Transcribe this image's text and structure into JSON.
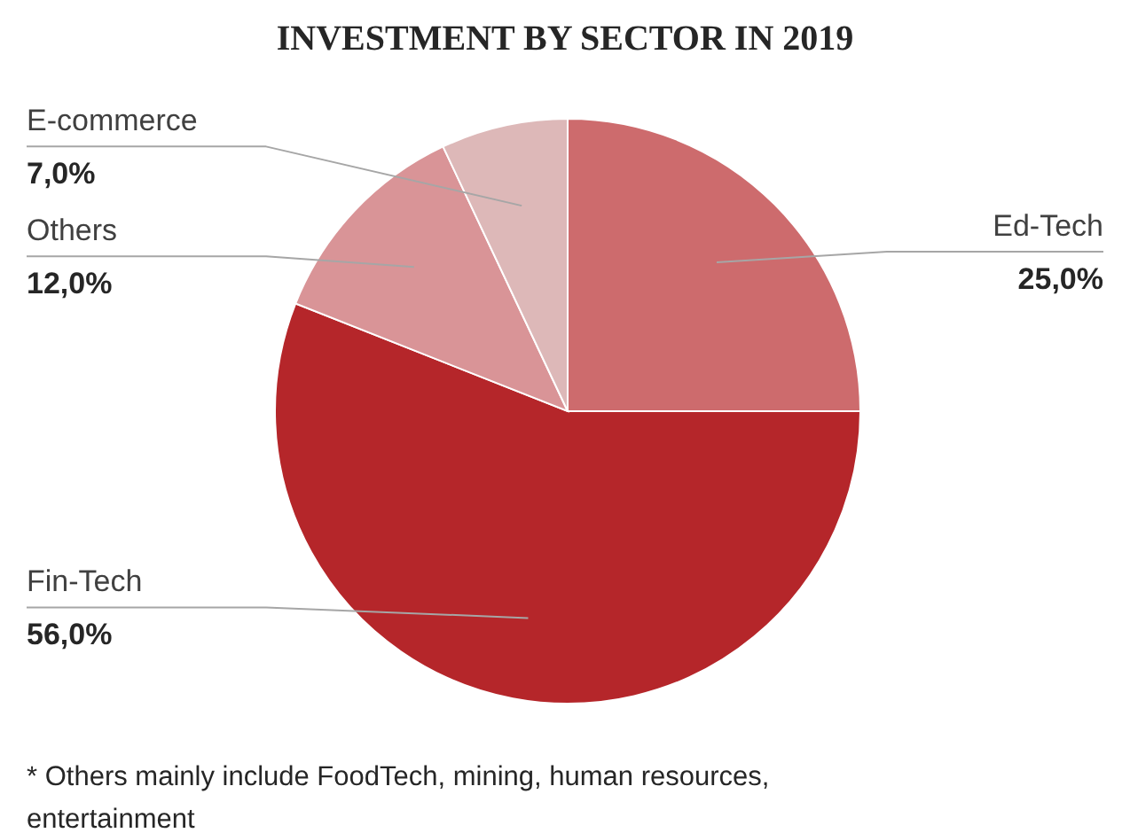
{
  "chart_data": {
    "type": "pie",
    "title": "INVESTMENT BY SECTOR IN 2019",
    "categories": [
      "Ed-Tech",
      "Fin-Tech",
      "Others",
      "E-commerce"
    ],
    "values": [
      25,
      56,
      12,
      7
    ],
    "value_labels": [
      "25,0%",
      "56,0%",
      "12,0%",
      "7,0%"
    ],
    "colors": [
      "#cd6b6d",
      "#b5262a",
      "#d99497",
      "#ddb8b8"
    ],
    "annotations": [
      "* Others mainly include FoodTech, mining, human resources, entertainment"
    ]
  }
}
